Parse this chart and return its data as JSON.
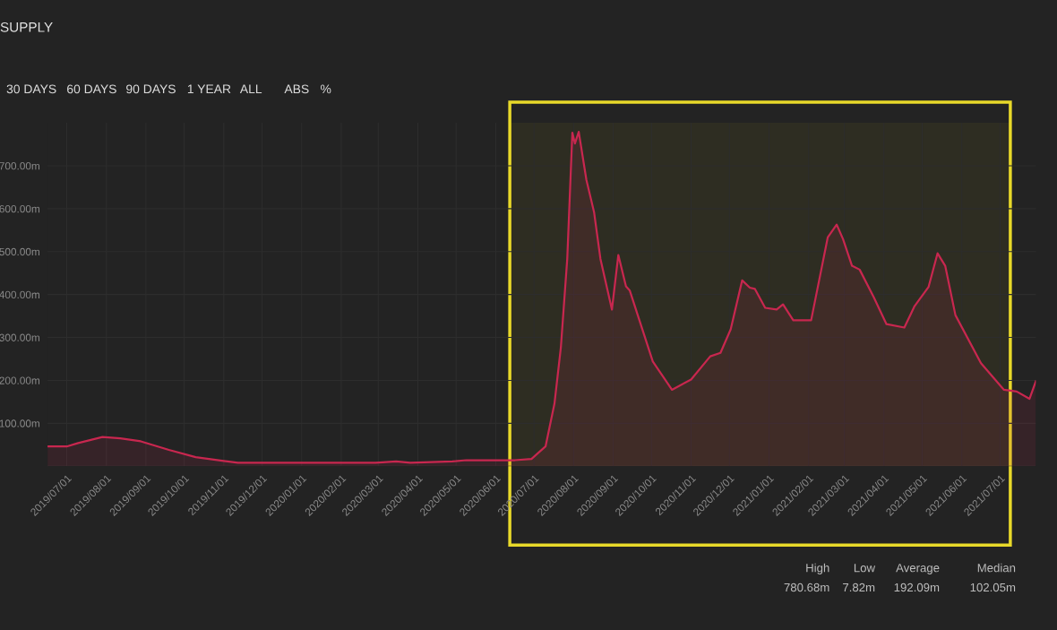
{
  "chart_data": {
    "type": "area",
    "title": "SUPPLY",
    "annotations": [
      "30 DAYS",
      "60 DAYS",
      "90 DAYS",
      "1 YEAR",
      "ALL",
      "ABS",
      "%",
      "High",
      "780.68m",
      "Low",
      "7.82m",
      "Average",
      "192.09m",
      "Median",
      "102.05m"
    ],
    "x": [
      "2019-06-16",
      "2019-07-01",
      "2019-07-10",
      "2019-07-29",
      "2019-08-12",
      "2019-08-28",
      "2019-09-19",
      "2019-10-10",
      "2019-11-01",
      "2019-11-12",
      "2020-02-28",
      "2020-03-15",
      "2020-03-26",
      "2020-04-28",
      "2020-05-09",
      "2020-06-16",
      "2020-06-29",
      "2020-07-10",
      "2020-07-17",
      "2020-07-22",
      "2020-07-27",
      "2020-07-31",
      "2020-08-02",
      "2020-08-05",
      "2020-08-11",
      "2020-08-17",
      "2020-08-22",
      "2020-08-31",
      "2020-09-05",
      "2020-09-11",
      "2020-09-14",
      "2020-10-02",
      "2020-10-17",
      "2020-11-01",
      "2020-11-16",
      "2020-11-24",
      "2020-12-02",
      "2020-12-11",
      "2020-12-17",
      "2020-12-21",
      "2020-12-29",
      "2021-01-07",
      "2021-01-12",
      "2021-01-20",
      "2021-02-03",
      "2021-02-16",
      "2021-02-23",
      "2021-02-28",
      "2021-03-07",
      "2021-03-13",
      "2021-03-24",
      "2021-04-03",
      "2021-04-17",
      "2021-04-25",
      "2021-05-06",
      "2021-05-13",
      "2021-05-19",
      "2021-05-27",
      "2021-06-16",
      "2021-07-04",
      "2021-07-14",
      "2021-07-24",
      "2021-07-29"
    ],
    "series": [
      {
        "color": "#c8274f",
        "values": [
          46,
          46,
          54,
          68,
          65,
          58,
          38,
          21,
          12,
          8,
          8,
          11,
          8,
          11,
          14,
          14,
          17,
          46,
          146,
          277,
          483,
          777,
          752,
          779,
          667,
          592,
          483,
          365,
          492,
          419,
          409,
          244,
          178,
          202,
          256,
          264,
          319,
          433,
          416,
          413,
          369,
          365,
          377,
          340,
          340,
          533,
          563,
          529,
          467,
          458,
          394,
          331,
          323,
          373,
          418,
          496,
          467,
          352,
          240,
          178,
          174,
          157,
          198
        ]
      }
    ],
    "xlim": [
      "2019-06-16",
      "2021-07-29"
    ],
    "xticks": [
      {
        "value": "2019-07-01",
        "label": "2019/07/01"
      },
      {
        "value": "2019-08-01",
        "label": "2019/08/01"
      },
      {
        "value": "2019-09-01",
        "label": "2019/09/01"
      },
      {
        "value": "2019-10-01",
        "label": "2019/10/01"
      },
      {
        "value": "2019-11-01",
        "label": "2019/11/01"
      },
      {
        "value": "2019-12-01",
        "label": "2019/12/01"
      },
      {
        "value": "2020-01-01",
        "label": "2020/01/01"
      },
      {
        "value": "2020-02-01",
        "label": "2020/02/01"
      },
      {
        "value": "2020-03-01",
        "label": "2020/03/01"
      },
      {
        "value": "2020-04-01",
        "label": "2020/04/01"
      },
      {
        "value": "2020-05-01",
        "label": "2020/05/01"
      },
      {
        "value": "2020-06-01",
        "label": "2020/06/01"
      },
      {
        "value": "2020-07-01",
        "label": "2020/07/01"
      },
      {
        "value": "2020-08-01",
        "label": "2020/08/01"
      },
      {
        "value": "2020-09-01",
        "label": "2020/09/01"
      },
      {
        "value": "2020-10-01",
        "label": "2020/10/01"
      },
      {
        "value": "2020-11-01",
        "label": "2020/11/01"
      },
      {
        "value": "2020-12-01",
        "label": "2020/12/01"
      },
      {
        "value": "2021-01-01",
        "label": "2021/01/01"
      },
      {
        "value": "2021-02-01",
        "label": "2021/02/01"
      },
      {
        "value": "2021-03-01",
        "label": "2021/03/01"
      },
      {
        "value": "2021-04-01",
        "label": "2021/04/01"
      },
      {
        "value": "2021-05-01",
        "label": "2021/05/01"
      },
      {
        "value": "2021-06-01",
        "label": "2021/06/01"
      },
      {
        "value": "2021-07-01",
        "label": "2021/07/01"
      }
    ],
    "ylim": [
      0,
      800
    ],
    "yticks": [
      {
        "value": 100,
        "label": "100.00m"
      },
      {
        "value": 200,
        "label": "200.00m"
      },
      {
        "value": 300,
        "label": "300.00m"
      },
      {
        "value": 400,
        "label": "400.00m"
      },
      {
        "value": 500,
        "label": "500.00m"
      },
      {
        "value": 600,
        "label": "600.00m"
      },
      {
        "value": 700,
        "label": "700.00m"
      }
    ],
    "grid": true,
    "bands": [
      {
        "axis": "x",
        "from": "2020-06-12",
        "to": "2021-07-09",
        "label": null,
        "color": "#e8d92a"
      }
    ]
  }
}
